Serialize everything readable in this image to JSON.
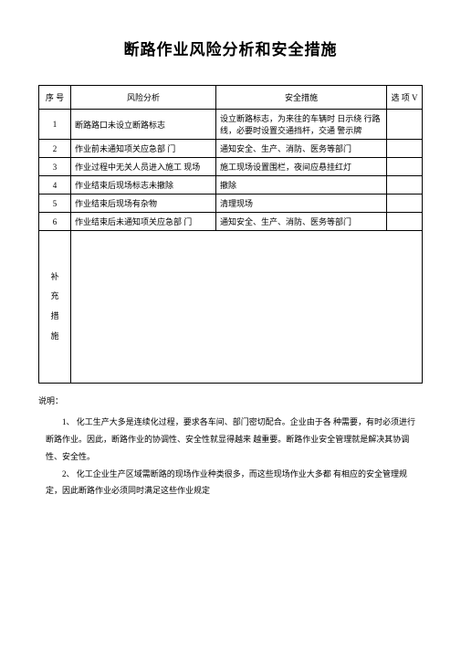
{
  "title": "断路作业风险分析和安全措施",
  "headers": {
    "num": "序 号",
    "risk": "风险分析",
    "measure": "安全措施",
    "check": "选 项 V"
  },
  "rows": [
    {
      "n": "1",
      "risk": "断路路口未设立断路标志",
      "measure": "设立断路标志，为来往的车辆时 日示绕 行路线，必要时设置交通挡杆，交通 警示牌"
    },
    {
      "n": "2",
      "risk": "作业前未通知项关应急部 门",
      "measure": "通知安全、生产、消防、医务等部门"
    },
    {
      "n": "3",
      "risk": "作业过程中无关人员进入施工 现场",
      "measure": "施工现场设置围栏，夜间应悬挂红灯"
    },
    {
      "n": "4",
      "risk": "作业结束后现场标志未撤除",
      "measure": "撤除"
    },
    {
      "n": "5",
      "risk": "作业结束后现场有杂物",
      "measure": "清理现场"
    },
    {
      "n": "6",
      "risk": "作业结束后未通知项关应急部 门",
      "measure": "通知安全、生产、消防、医务等部门"
    }
  ],
  "supplement_label": "补\n充\n措\n施",
  "notes_label": "说明：",
  "notes": [
    "1、  化工生产大多是连续化过程，要求各车间、部门密切配合。企业由于各 种需要，有时必须进行断路作业。因此，断路作业的协调性、安全性就显得越来 越重要。断路作业安全管理就是解决其协调性、安全性。",
    "2、 化工企业生产区域需断路的现场作业种类很多，而这些现场作业大多都 有相应的安全管理规定，因此断路作业必须同时满足这些作业规定"
  ]
}
